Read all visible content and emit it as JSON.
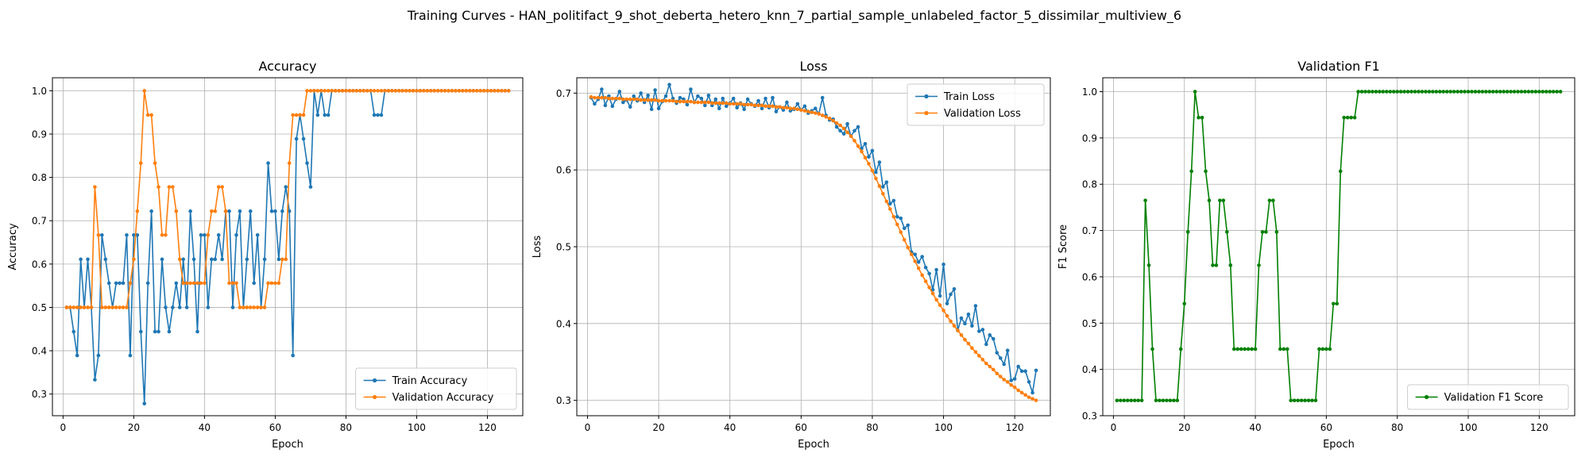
{
  "figure": {
    "title": "Training Curves - HAN_politifact_9_shot_deberta_hetero_knn_7_partial_sample_unlabeled_factor_5_dissimilar_multiview_6"
  },
  "chart_data": [
    {
      "type": "line",
      "title": "Accuracy",
      "xlabel": "Epoch",
      "ylabel": "Accuracy",
      "xlim": [
        -3,
        130
      ],
      "ylim": [
        0.25,
        1.03
      ],
      "xticks": [
        0,
        20,
        40,
        60,
        80,
        100,
        120
      ],
      "yticks": [
        0.3,
        0.4,
        0.5,
        0.6,
        0.7,
        0.8,
        0.9,
        1.0
      ],
      "grid": true,
      "legend": "lower-right",
      "x": [
        1,
        2,
        3,
        4,
        5,
        6,
        7,
        8,
        9,
        10,
        11,
        12,
        13,
        14,
        15,
        16,
        17,
        18,
        19,
        20,
        21,
        22,
        23,
        24,
        25,
        26,
        27,
        28,
        29,
        30,
        31,
        32,
        33,
        34,
        35,
        36,
        37,
        38,
        39,
        40,
        41,
        42,
        43,
        44,
        45,
        46,
        47,
        48,
        49,
        50,
        51,
        52,
        53,
        54,
        55,
        56,
        57,
        58,
        59,
        60,
        61,
        62,
        63,
        64,
        65,
        66,
        67,
        68,
        69,
        70,
        71,
        72,
        73,
        74,
        75,
        76,
        77,
        78,
        79,
        80,
        81,
        82,
        83,
        84,
        85,
        86,
        87,
        88,
        89,
        90,
        91,
        92,
        93,
        94,
        95,
        96,
        97,
        98,
        99,
        100,
        101,
        102,
        103,
        104,
        105,
        106,
        107,
        108,
        109,
        110,
        111,
        112,
        113,
        114,
        115,
        116,
        117,
        118,
        119,
        120,
        121,
        122,
        123,
        124,
        125,
        126
      ],
      "series": [
        {
          "name": "Train Accuracy",
          "color": "#1f77b4",
          "values": [
            0.5,
            0.5,
            0.444,
            0.389,
            0.611,
            0.5,
            0.611,
            0.5,
            0.333,
            0.389,
            0.667,
            0.611,
            0.556,
            0.5,
            0.556,
            0.556,
            0.556,
            0.667,
            0.389,
            0.667,
            0.667,
            0.444,
            0.278,
            0.556,
            0.722,
            0.444,
            0.444,
            0.611,
            0.5,
            0.444,
            0.5,
            0.556,
            0.5,
            0.611,
            0.5,
            0.722,
            0.611,
            0.444,
            0.667,
            0.667,
            0.5,
            0.611,
            0.611,
            0.667,
            0.611,
            0.722,
            0.722,
            0.5,
            0.667,
            0.722,
            0.5,
            0.611,
            0.722,
            0.556,
            0.667,
            0.5,
            0.611,
            0.833,
            0.722,
            0.722,
            0.611,
            0.722,
            0.778,
            0.722,
            0.389,
            0.889,
            0.944,
            0.889,
            0.833,
            0.778,
            1.0,
            0.944,
            1.0,
            0.944,
            0.944,
            1.0,
            1.0,
            1.0,
            1.0,
            1.0,
            1.0,
            1.0,
            1.0,
            1.0,
            1.0,
            1.0,
            1.0,
            0.944,
            0.944,
            0.944,
            1.0,
            1.0,
            1.0,
            1.0,
            1.0,
            1.0,
            1.0,
            1.0,
            1.0,
            1.0,
            1.0,
            1.0,
            1.0,
            1.0,
            1.0,
            1.0,
            1.0,
            1.0,
            1.0,
            1.0,
            1.0,
            1.0,
            1.0,
            1.0,
            1.0,
            1.0,
            1.0,
            1.0,
            1.0,
            1.0,
            1.0,
            1.0,
            1.0,
            1.0,
            1.0,
            1.0
          ]
        },
        {
          "name": "Validation Accuracy",
          "color": "#ff7f0e",
          "values": [
            0.5,
            0.5,
            0.5,
            0.5,
            0.5,
            0.5,
            0.5,
            0.5,
            0.778,
            0.667,
            0.5,
            0.5,
            0.5,
            0.5,
            0.5,
            0.5,
            0.5,
            0.5,
            0.556,
            0.611,
            0.722,
            0.833,
            1.0,
            0.944,
            0.944,
            0.833,
            0.778,
            0.667,
            0.667,
            0.778,
            0.778,
            0.722,
            0.611,
            0.556,
            0.556,
            0.556,
            0.556,
            0.556,
            0.556,
            0.556,
            0.667,
            0.722,
            0.722,
            0.778,
            0.778,
            0.722,
            0.556,
            0.556,
            0.556,
            0.5,
            0.5,
            0.5,
            0.5,
            0.5,
            0.5,
            0.5,
            0.5,
            0.556,
            0.556,
            0.556,
            0.556,
            0.611,
            0.611,
            0.833,
            0.944,
            0.944,
            0.944,
            0.944,
            1.0,
            1.0,
            1.0,
            1.0,
            1.0,
            1.0,
            1.0,
            1.0,
            1.0,
            1.0,
            1.0,
            1.0,
            1.0,
            1.0,
            1.0,
            1.0,
            1.0,
            1.0,
            1.0,
            1.0,
            1.0,
            1.0,
            1.0,
            1.0,
            1.0,
            1.0,
            1.0,
            1.0,
            1.0,
            1.0,
            1.0,
            1.0,
            1.0,
            1.0,
            1.0,
            1.0,
            1.0,
            1.0,
            1.0,
            1.0,
            1.0,
            1.0,
            1.0,
            1.0,
            1.0,
            1.0,
            1.0,
            1.0,
            1.0,
            1.0,
            1.0,
            1.0,
            1.0,
            1.0,
            1.0,
            1.0,
            1.0,
            1.0
          ]
        }
      ]
    },
    {
      "type": "line",
      "title": "Loss",
      "xlabel": "Epoch",
      "ylabel": "Loss",
      "xlim": [
        -3,
        130
      ],
      "ylim": [
        0.28,
        0.72
      ],
      "xticks": [
        0,
        20,
        40,
        60,
        80,
        100,
        120
      ],
      "yticks": [
        0.3,
        0.4,
        0.5,
        0.6,
        0.7
      ],
      "grid": true,
      "legend": "upper-right",
      "x": [
        1,
        2,
        3,
        4,
        5,
        6,
        7,
        8,
        9,
        10,
        11,
        12,
        13,
        14,
        15,
        16,
        17,
        18,
        19,
        20,
        21,
        22,
        23,
        24,
        25,
        26,
        27,
        28,
        29,
        30,
        31,
        32,
        33,
        34,
        35,
        36,
        37,
        38,
        39,
        40,
        41,
        42,
        43,
        44,
        45,
        46,
        47,
        48,
        49,
        50,
        51,
        52,
        53,
        54,
        55,
        56,
        57,
        58,
        59,
        60,
        61,
        62,
        63,
        64,
        65,
        66,
        67,
        68,
        69,
        70,
        71,
        72,
        73,
        74,
        75,
        76,
        77,
        78,
        79,
        80,
        81,
        82,
        83,
        84,
        85,
        86,
        87,
        88,
        89,
        90,
        91,
        92,
        93,
        94,
        95,
        96,
        97,
        98,
        99,
        100,
        101,
        102,
        103,
        104,
        105,
        106,
        107,
        108,
        109,
        110,
        111,
        112,
        113,
        114,
        115,
        116,
        117,
        118,
        119,
        120,
        121,
        122,
        123,
        124,
        125,
        126
      ],
      "series": [
        {
          "name": "Train Loss",
          "color": "#1f77b4",
          "values": [
            0.694,
            0.686,
            0.692,
            0.705,
            0.684,
            0.696,
            0.683,
            0.692,
            0.702,
            0.688,
            0.691,
            0.682,
            0.696,
            0.69,
            0.7,
            0.688,
            0.697,
            0.679,
            0.704,
            0.68,
            0.689,
            0.696,
            0.711,
            0.693,
            0.687,
            0.694,
            0.692,
            0.685,
            0.705,
            0.688,
            0.696,
            0.693,
            0.684,
            0.697,
            0.684,
            0.692,
            0.68,
            0.693,
            0.683,
            0.687,
            0.693,
            0.681,
            0.687,
            0.679,
            0.692,
            0.686,
            0.683,
            0.69,
            0.68,
            0.693,
            0.681,
            0.694,
            0.676,
            0.682,
            0.678,
            0.688,
            0.677,
            0.679,
            0.686,
            0.678,
            0.683,
            0.674,
            0.677,
            0.68,
            0.673,
            0.694,
            0.671,
            0.665,
            0.666,
            0.656,
            0.651,
            0.647,
            0.66,
            0.644,
            0.651,
            0.656,
            0.628,
            0.634,
            0.617,
            0.625,
            0.597,
            0.61,
            0.578,
            0.584,
            0.556,
            0.56,
            0.539,
            0.537,
            0.524,
            0.528,
            0.493,
            0.49,
            0.48,
            0.487,
            0.473,
            0.465,
            0.444,
            0.47,
            0.436,
            0.477,
            0.426,
            0.438,
            0.445,
            0.391,
            0.407,
            0.4,
            0.412,
            0.397,
            0.423,
            0.39,
            0.392,
            0.373,
            0.385,
            0.38,
            0.362,
            0.355,
            0.347,
            0.365,
            0.326,
            0.328,
            0.344,
            0.338,
            0.338,
            0.324,
            0.31,
            0.339
          ]
        },
        {
          "name": "Validation Loss",
          "color": "#ff7f0e",
          "values": [
            0.695,
            0.694,
            0.694,
            0.694,
            0.694,
            0.693,
            0.693,
            0.693,
            0.693,
            0.692,
            0.692,
            0.692,
            0.692,
            0.692,
            0.691,
            0.691,
            0.691,
            0.691,
            0.691,
            0.69,
            0.69,
            0.69,
            0.69,
            0.69,
            0.689,
            0.689,
            0.689,
            0.689,
            0.689,
            0.688,
            0.688,
            0.688,
            0.688,
            0.688,
            0.687,
            0.687,
            0.687,
            0.687,
            0.687,
            0.686,
            0.686,
            0.686,
            0.686,
            0.685,
            0.685,
            0.685,
            0.684,
            0.684,
            0.684,
            0.683,
            0.683,
            0.683,
            0.682,
            0.682,
            0.681,
            0.681,
            0.68,
            0.68,
            0.679,
            0.678,
            0.677,
            0.676,
            0.675,
            0.674,
            0.673,
            0.671,
            0.669,
            0.667,
            0.664,
            0.661,
            0.658,
            0.654,
            0.649,
            0.644,
            0.638,
            0.631,
            0.624,
            0.616,
            0.608,
            0.599,
            0.589,
            0.579,
            0.569,
            0.559,
            0.549,
            0.539,
            0.529,
            0.519,
            0.509,
            0.499,
            0.49,
            0.481,
            0.472,
            0.463,
            0.455,
            0.447,
            0.439,
            0.431,
            0.424,
            0.417,
            0.41,
            0.403,
            0.397,
            0.391,
            0.385,
            0.379,
            0.374,
            0.368,
            0.363,
            0.358,
            0.353,
            0.348,
            0.344,
            0.34,
            0.335,
            0.331,
            0.327,
            0.324,
            0.32,
            0.317,
            0.313,
            0.31,
            0.307,
            0.304,
            0.302,
            0.3
          ]
        }
      ]
    },
    {
      "type": "line",
      "title": "Validation F1",
      "xlabel": "Epoch",
      "ylabel": "F1 Score",
      "xlim": [
        -3,
        130
      ],
      "ylim": [
        0.3,
        1.03
      ],
      "xticks": [
        0,
        20,
        40,
        60,
        80,
        100,
        120
      ],
      "yticks": [
        0.3,
        0.4,
        0.5,
        0.6,
        0.7,
        0.8,
        0.9,
        1.0
      ],
      "grid": true,
      "legend": "lower-right",
      "x": [
        1,
        2,
        3,
        4,
        5,
        6,
        7,
        8,
        9,
        10,
        11,
        12,
        13,
        14,
        15,
        16,
        17,
        18,
        19,
        20,
        21,
        22,
        23,
        24,
        25,
        26,
        27,
        28,
        29,
        30,
        31,
        32,
        33,
        34,
        35,
        36,
        37,
        38,
        39,
        40,
        41,
        42,
        43,
        44,
        45,
        46,
        47,
        48,
        49,
        50,
        51,
        52,
        53,
        54,
        55,
        56,
        57,
        58,
        59,
        60,
        61,
        62,
        63,
        64,
        65,
        66,
        67,
        68,
        69,
        70,
        71,
        72,
        73,
        74,
        75,
        76,
        77,
        78,
        79,
        80,
        81,
        82,
        83,
        84,
        85,
        86,
        87,
        88,
        89,
        90,
        91,
        92,
        93,
        94,
        95,
        96,
        97,
        98,
        99,
        100,
        101,
        102,
        103,
        104,
        105,
        106,
        107,
        108,
        109,
        110,
        111,
        112,
        113,
        114,
        115,
        116,
        117,
        118,
        119,
        120,
        121,
        122,
        123,
        124,
        125,
        126
      ],
      "series": [
        {
          "name": "Validation F1 Score",
          "color": "#008000",
          "values": [
            0.333,
            0.333,
            0.333,
            0.333,
            0.333,
            0.333,
            0.333,
            0.333,
            0.765,
            0.625,
            0.444,
            0.333,
            0.333,
            0.333,
            0.333,
            0.333,
            0.333,
            0.333,
            0.444,
            0.542,
            0.697,
            0.828,
            1.0,
            0.944,
            0.944,
            0.828,
            0.765,
            0.625,
            0.625,
            0.765,
            0.765,
            0.697,
            0.625,
            0.444,
            0.444,
            0.444,
            0.444,
            0.444,
            0.444,
            0.444,
            0.625,
            0.697,
            0.697,
            0.765,
            0.765,
            0.697,
            0.444,
            0.444,
            0.444,
            0.333,
            0.333,
            0.333,
            0.333,
            0.333,
            0.333,
            0.333,
            0.333,
            0.444,
            0.444,
            0.444,
            0.444,
            0.542,
            0.542,
            0.828,
            0.944,
            0.944,
            0.944,
            0.944,
            1.0,
            1.0,
            1.0,
            1.0,
            1.0,
            1.0,
            1.0,
            1.0,
            1.0,
            1.0,
            1.0,
            1.0,
            1.0,
            1.0,
            1.0,
            1.0,
            1.0,
            1.0,
            1.0,
            1.0,
            1.0,
            1.0,
            1.0,
            1.0,
            1.0,
            1.0,
            1.0,
            1.0,
            1.0,
            1.0,
            1.0,
            1.0,
            1.0,
            1.0,
            1.0,
            1.0,
            1.0,
            1.0,
            1.0,
            1.0,
            1.0,
            1.0,
            1.0,
            1.0,
            1.0,
            1.0,
            1.0,
            1.0,
            1.0,
            1.0,
            1.0,
            1.0,
            1.0,
            1.0,
            1.0,
            1.0,
            1.0,
            1.0
          ]
        }
      ]
    }
  ]
}
